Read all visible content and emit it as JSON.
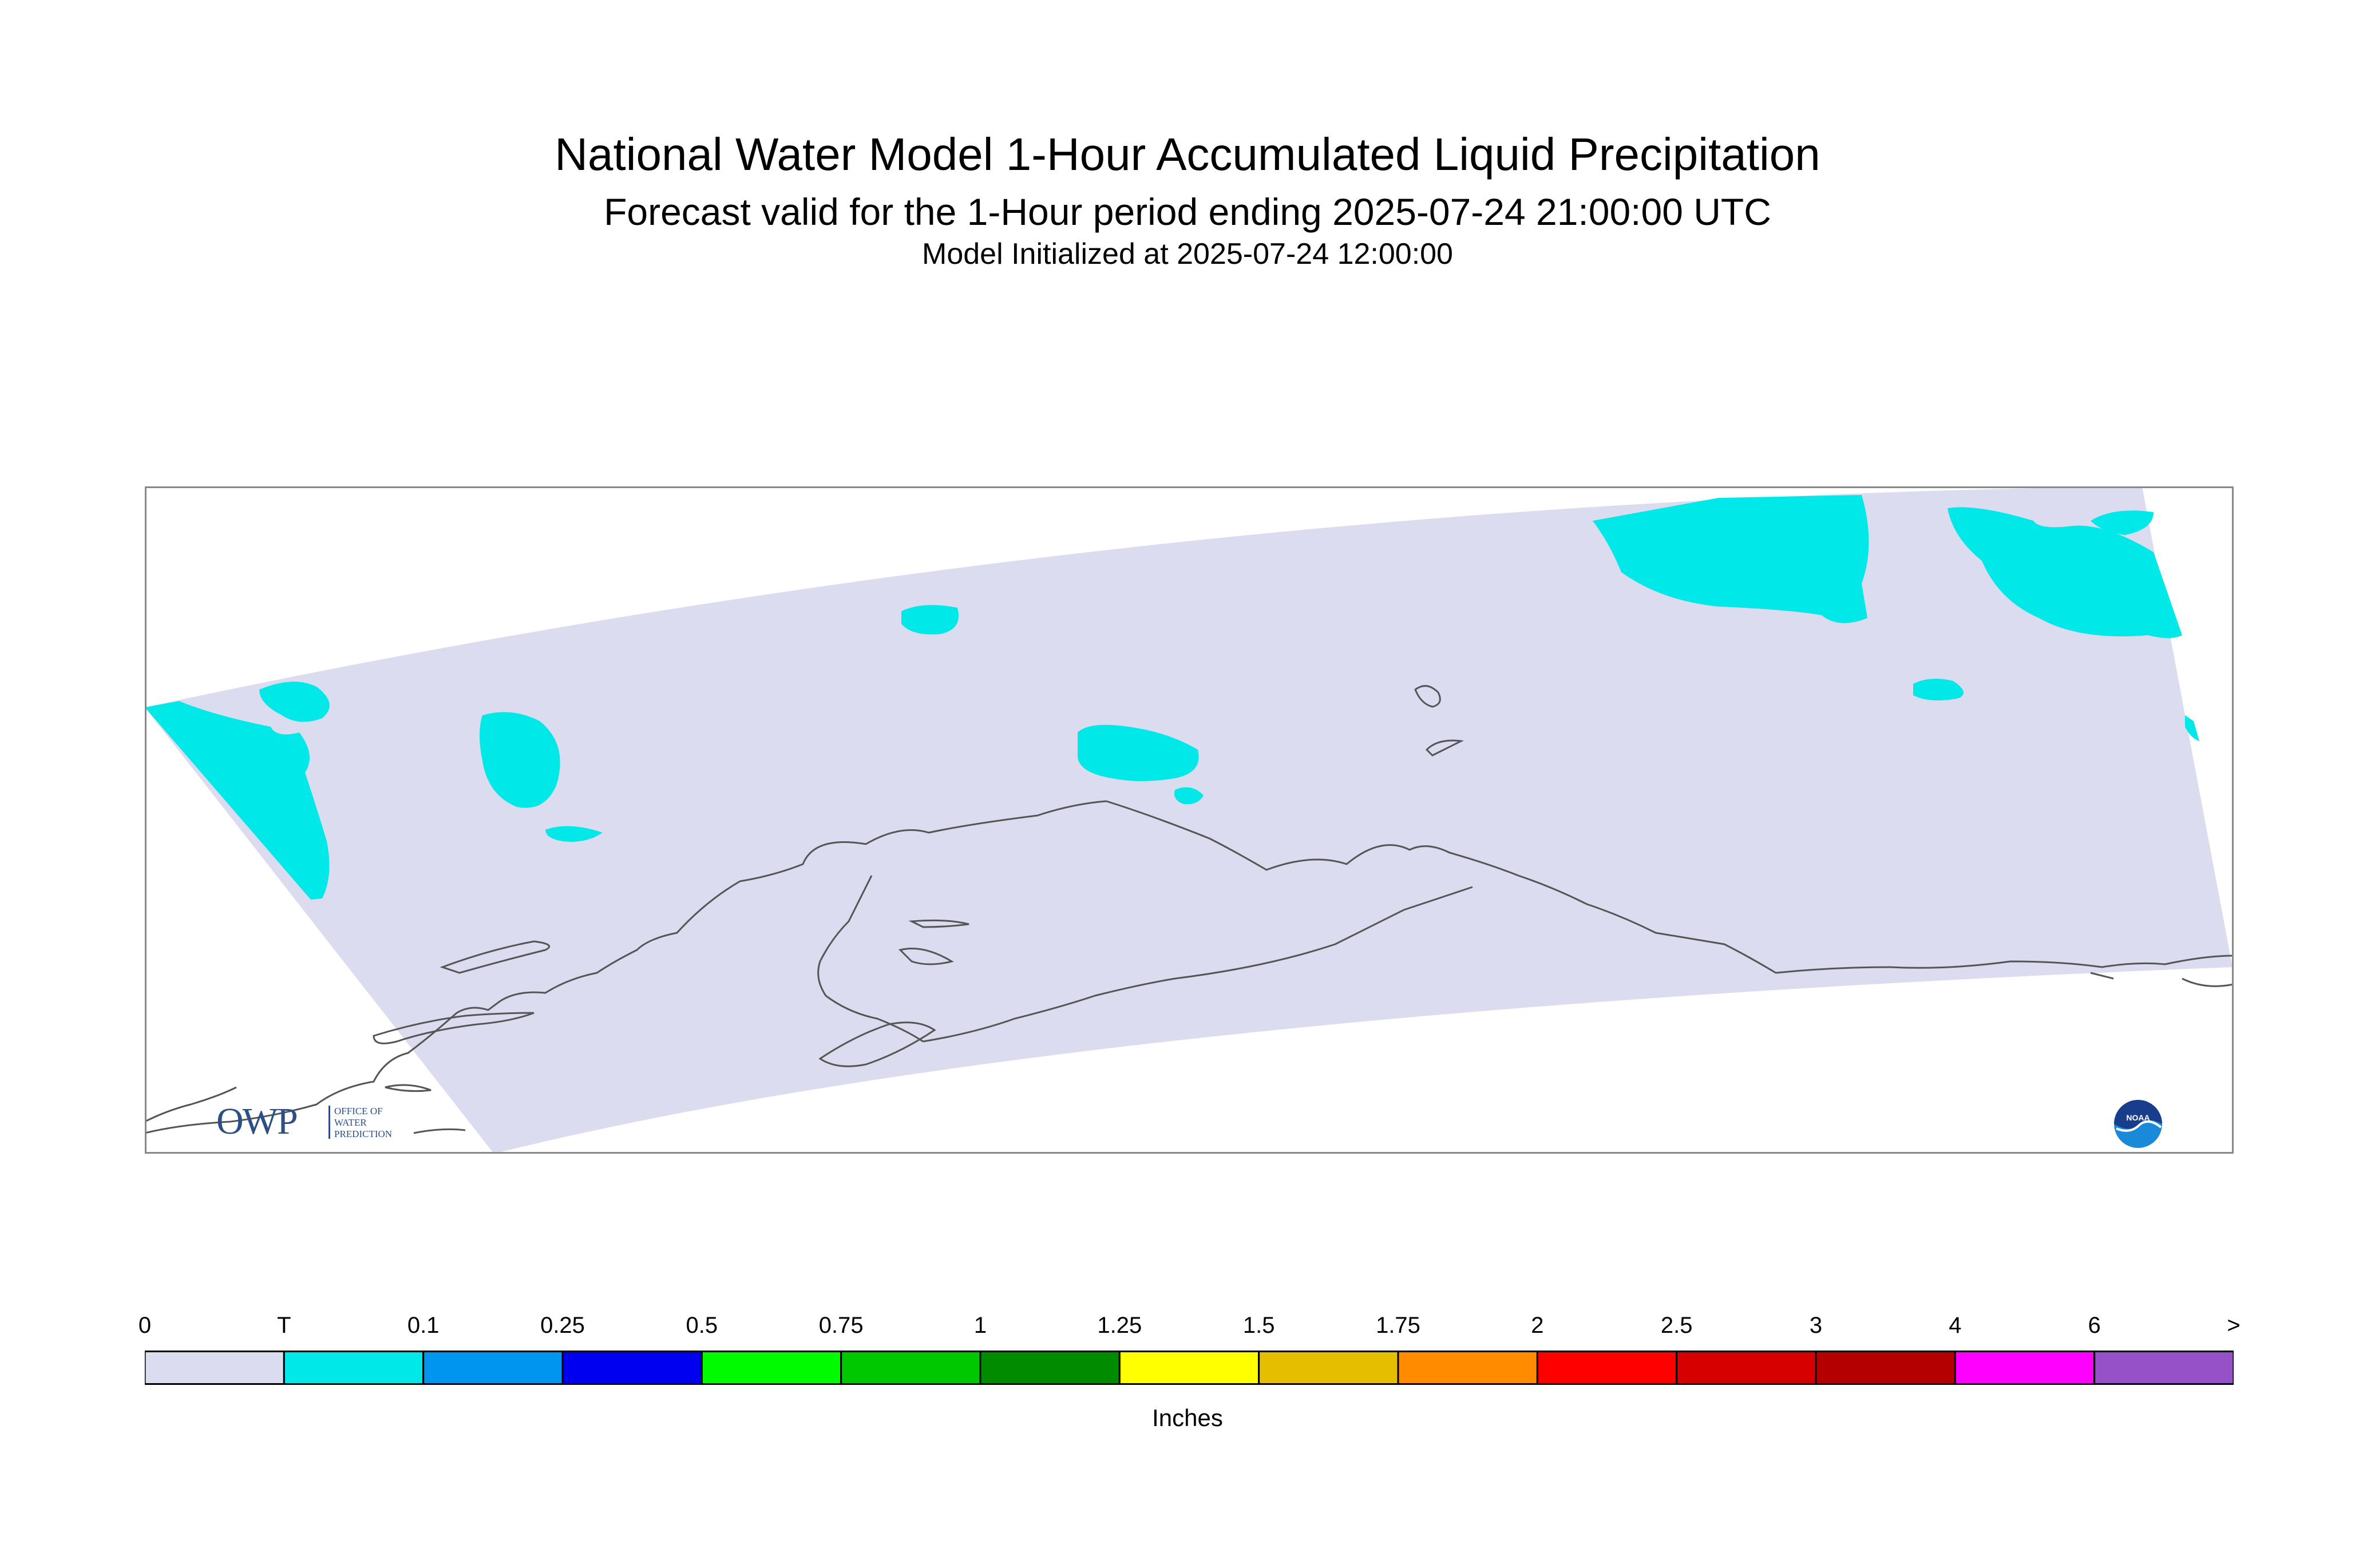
{
  "header": {
    "title": "National Water Model 1-Hour Accumulated Liquid Precipitation",
    "subtitle": "Forecast valid for the 1-Hour period ending 2025-07-24 21:00:00 UTC",
    "init": "Model Initialized at 2025-07-24 12:00:00"
  },
  "colors": {
    "domain_fill": "#dcdcf0",
    "precip_trace": "#00e8e8",
    "coast_line": "#555555",
    "frame": "#888888"
  },
  "legend": {
    "units": "Inches",
    "ticks": [
      "0",
      "T",
      "0.1",
      "0.25",
      "0.5",
      "0.75",
      "1",
      "1.25",
      "1.5",
      "1.75",
      "2",
      "2.5",
      "3",
      "4",
      "6",
      ">"
    ],
    "colors": [
      "#dcdcf0",
      "#00e8e8",
      "#0096f0",
      "#0000f0",
      "#00fa00",
      "#00c800",
      "#008c00",
      "#ffff00",
      "#e6be00",
      "#ff8c00",
      "#ff0000",
      "#d70000",
      "#b40000",
      "#ff00ff",
      "#9650c8"
    ]
  },
  "logos": {
    "owp_main": "OWP",
    "owp_sub": "OFFICE OF\nWATER\nPREDICTION",
    "noaa": "NOAA"
  }
}
